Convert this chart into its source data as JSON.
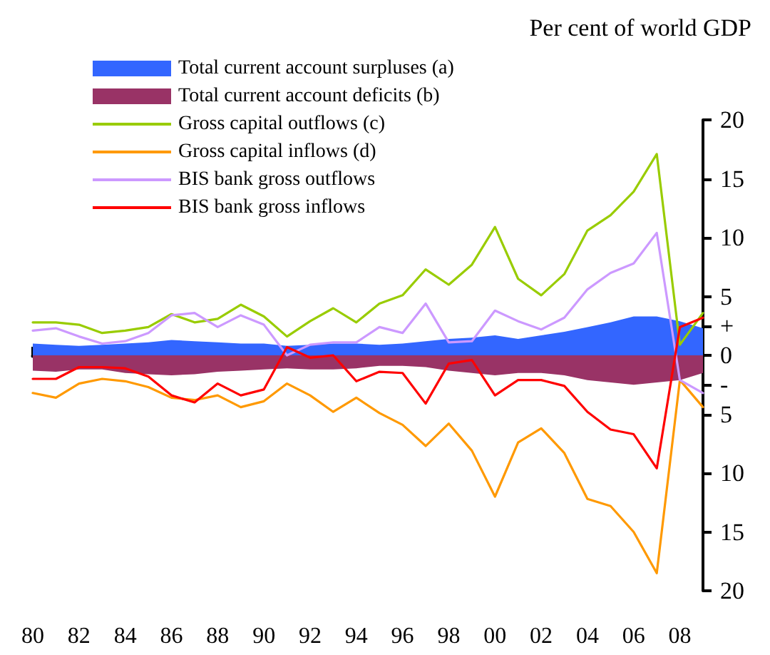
{
  "chart_data": {
    "type": "line",
    "ylabel": "Per cent of world GDP",
    "categories": [
      "80",
      null,
      "82",
      null,
      "84",
      null,
      "86",
      null,
      "88",
      null,
      "90",
      null,
      "92",
      null,
      "94",
      null,
      "96",
      null,
      "98",
      null,
      "00",
      null,
      "02",
      null,
      "04",
      null,
      "06",
      null,
      "08",
      null
    ],
    "series": [
      {
        "name": "Total current account surpluses (a)",
        "type": "area",
        "color": "#3366ff",
        "values": [
          1.0,
          0.9,
          0.8,
          0.9,
          1.0,
          1.1,
          1.3,
          1.2,
          1.1,
          1.0,
          1.0,
          0.8,
          0.9,
          1.0,
          1.0,
          0.9,
          1.0,
          1.2,
          1.4,
          1.5,
          1.7,
          1.4,
          1.7,
          2.0,
          2.4,
          2.8,
          3.3,
          3.3,
          2.9,
          2.3
        ]
      },
      {
        "name": "Total current account deficits (b)",
        "type": "area",
        "color": "#993366",
        "values": [
          -1.3,
          -1.4,
          -1.2,
          -1.2,
          -1.5,
          -1.6,
          -1.7,
          -1.6,
          -1.4,
          -1.3,
          -1.2,
          -1.1,
          -1.2,
          -1.2,
          -1.1,
          -0.9,
          -0.9,
          -1.0,
          -1.3,
          -1.5,
          -1.7,
          -1.5,
          -1.5,
          -1.7,
          -2.1,
          -2.3,
          -2.5,
          -2.3,
          -2.1,
          -1.5
        ]
      },
      {
        "name": "Gross capital outflows (c)",
        "color": "#99cc00",
        "values": [
          2.8,
          2.8,
          2.6,
          1.9,
          2.1,
          2.4,
          3.5,
          2.8,
          3.1,
          4.3,
          3.3,
          1.6,
          2.9,
          4.0,
          2.8,
          4.4,
          5.1,
          7.3,
          6.0,
          7.7,
          10.9,
          6.5,
          5.1,
          6.9,
          10.6,
          11.9,
          13.9,
          17.1,
          0.9,
          3.6
        ]
      },
      {
        "name": "Gross capital inflows (d)",
        "color": "#ff9900",
        "values": [
          -3.2,
          -3.6,
          -2.4,
          -2.0,
          -2.2,
          -2.7,
          -3.6,
          -3.8,
          -3.4,
          -4.4,
          -3.9,
          -2.4,
          -3.4,
          -4.8,
          -3.6,
          -4.9,
          -5.9,
          -7.7,
          -5.8,
          -8.1,
          -12.0,
          -7.4,
          -6.2,
          -8.3,
          -12.2,
          -12.8,
          -15.0,
          -18.5,
          -2.1,
          -4.4
        ]
      },
      {
        "name": "BIS bank gross outflows",
        "color": "#cc99ff",
        "values": [
          2.1,
          2.3,
          1.6,
          1.0,
          1.2,
          1.9,
          3.4,
          3.6,
          2.4,
          3.4,
          2.6,
          0.0,
          0.9,
          1.1,
          1.1,
          2.4,
          1.9,
          4.4,
          1.1,
          1.2,
          3.8,
          2.9,
          2.2,
          3.2,
          5.6,
          7.0,
          7.8,
          10.4,
          -2.1,
          -3.2
        ]
      },
      {
        "name": "BIS bank gross inflows",
        "color": "#ff0000",
        "values": [
          -2.0,
          -2.0,
          -1.0,
          -1.0,
          -1.1,
          -1.8,
          -3.4,
          -4.0,
          -2.4,
          -3.4,
          -2.9,
          0.7,
          -0.2,
          0,
          -2.2,
          -1.4,
          -1.5,
          -4.1,
          -0.7,
          -0.4,
          -3.4,
          -2.1,
          -2.1,
          -2.6,
          -4.8,
          -6.3,
          -6.7,
          -9.6,
          2.4,
          3.2
        ]
      }
    ],
    "ylim": [
      -20,
      20
    ],
    "yticks": [
      {
        "value": -20,
        "label": "20"
      },
      {
        "value": -15,
        "label": "15"
      },
      {
        "value": -10,
        "label": "10"
      },
      {
        "value": -5,
        "label": "5"
      },
      {
        "value": -2.5,
        "label": "-"
      },
      0,
      {
        "value": 2.5,
        "label": "+"
      },
      5,
      10,
      15,
      20
    ],
    "legend": "top left",
    "marker": "none",
    "line_style": "solid"
  }
}
